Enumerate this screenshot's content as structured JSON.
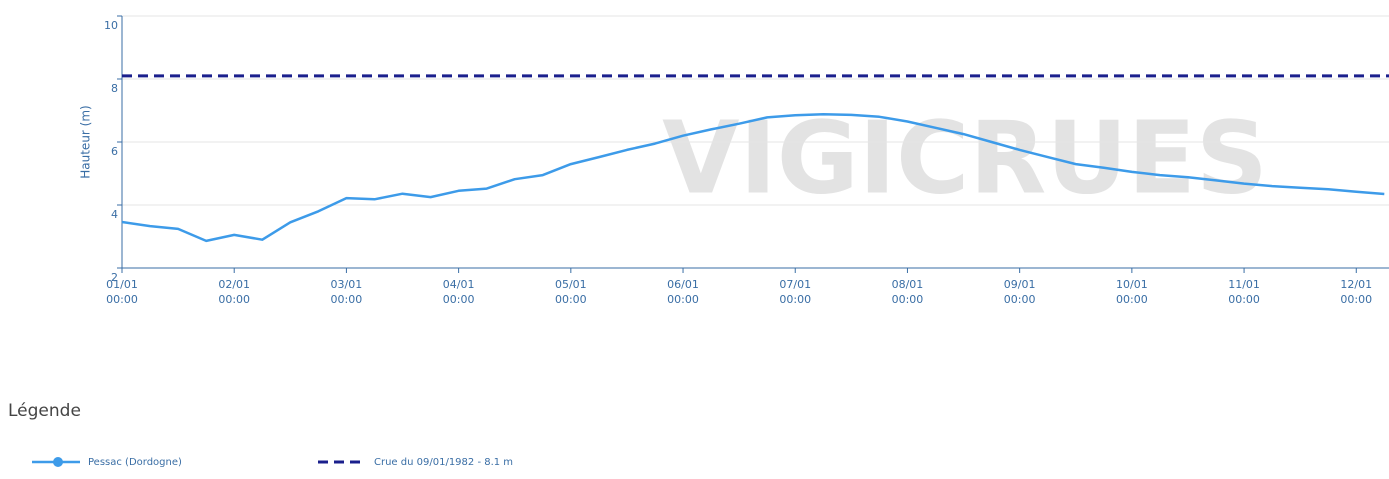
{
  "chart_data": {
    "type": "line",
    "ylabel": "Hauteur (m)",
    "ylim": [
      2,
      10
    ],
    "yticks": [
      2,
      4,
      6,
      8,
      10
    ],
    "grid": true,
    "xlim": [
      "01/01 00:00",
      "12/01 07:00"
    ],
    "xticks": [
      {
        "date": "01/01",
        "time": "00:00"
      },
      {
        "date": "02/01",
        "time": "00:00"
      },
      {
        "date": "03/01",
        "time": "00:00"
      },
      {
        "date": "04/01",
        "time": "00:00"
      },
      {
        "date": "05/01",
        "time": "00:00"
      },
      {
        "date": "06/01",
        "time": "00:00"
      },
      {
        "date": "07/01",
        "time": "00:00"
      },
      {
        "date": "08/01",
        "time": "00:00"
      },
      {
        "date": "09/01",
        "time": "00:00"
      },
      {
        "date": "10/01",
        "time": "00:00"
      },
      {
        "date": "11/01",
        "time": "00:00"
      },
      {
        "date": "12/01",
        "time": "00:00"
      }
    ],
    "x": [
      "01/01 00:00",
      "01/01 06:00",
      "01/01 12:00",
      "01/01 18:00",
      "02/01 00:00",
      "02/01 06:00",
      "02/01 12:00",
      "02/01 18:00",
      "03/01 00:00",
      "03/01 06:00",
      "03/01 12:00",
      "03/01 18:00",
      "04/01 00:00",
      "04/01 06:00",
      "04/01 12:00",
      "04/01 18:00",
      "05/01 00:00",
      "05/01 06:00",
      "05/01 12:00",
      "05/01 18:00",
      "06/01 00:00",
      "06/01 06:00",
      "06/01 12:00",
      "06/01 18:00",
      "07/01 00:00",
      "07/01 06:00",
      "07/01 12:00",
      "07/01 18:00",
      "08/01 00:00",
      "08/01 06:00",
      "08/01 12:00",
      "08/01 18:00",
      "09/01 00:00",
      "09/01 06:00",
      "09/01 12:00",
      "09/01 18:00",
      "10/01 00:00",
      "10/01 06:00",
      "10/01 12:00",
      "10/01 18:00",
      "11/01 00:00",
      "11/01 06:00",
      "11/01 12:00",
      "11/01 18:00",
      "12/01 00:00",
      "12/01 06:00"
    ],
    "series": [
      {
        "name": "Pessac (Dordogne)",
        "color": "#3d9be9",
        "values": [
          3.46,
          3.33,
          3.24,
          2.86,
          3.05,
          2.9,
          3.45,
          3.8,
          4.22,
          4.18,
          4.36,
          4.25,
          4.45,
          4.52,
          4.82,
          4.95,
          5.3,
          5.52,
          5.75,
          5.95,
          6.2,
          6.4,
          6.58,
          6.78,
          6.85,
          6.88,
          6.86,
          6.8,
          6.65,
          6.45,
          6.25,
          6.0,
          5.75,
          5.52,
          5.3,
          5.18,
          5.05,
          4.95,
          4.88,
          4.78,
          4.68,
          4.6,
          4.55,
          4.5,
          4.42,
          4.35
        ]
      }
    ],
    "reference_lines": [
      {
        "name": "Crue du 09/01/1982 - 8.1 m",
        "value": 8.1,
        "color": "#1a1f8c",
        "dashed": true
      }
    ],
    "watermark": "VIGICRUES",
    "legend_title": "Légende"
  }
}
